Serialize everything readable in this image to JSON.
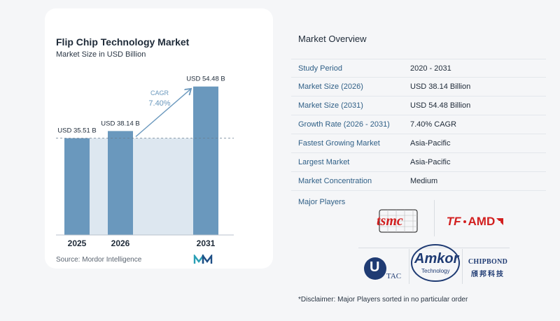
{
  "chart": {
    "title": "Flip Chip Technology Market",
    "subtitle": "Market Size in USD Billion",
    "cagr_label": "CAGR",
    "cagr_value": "7.40%",
    "source": "Source:  Mordor Intelligence"
  },
  "chart_data": {
    "type": "bar",
    "categories": [
      "2025",
      "2026",
      "2031"
    ],
    "values": [
      35.51,
      38.14,
      54.48
    ],
    "value_labels": [
      "USD 35.51 B",
      "USD 38.14 B",
      "USD 54.48 B"
    ],
    "title": "Flip Chip Technology Market",
    "subtitle": "Market Size in USD Billion",
    "ylabel": "",
    "xlabel": "",
    "ylim": [
      0,
      58
    ],
    "bar_color": "#6a98bd",
    "band_color": "#dde7f0",
    "annotation": "CAGR 7.40%"
  },
  "overview": {
    "title": "Market Overview",
    "rows": [
      {
        "label": "Study Period",
        "value": "2020 - 2031"
      },
      {
        "label": "Market Size (2026)",
        "value": "USD 38.14 Billion"
      },
      {
        "label": "Market Size (2031)",
        "value": "USD 54.48 Billion"
      },
      {
        "label": "Growth Rate (2026 - 2031)",
        "value": "7.40% CAGR"
      },
      {
        "label": "Fastest Growing Market",
        "value": "Asia-Pacific"
      },
      {
        "label": "Largest Market",
        "value": "Asia-Pacific"
      },
      {
        "label": "Market Concentration",
        "value": "Medium"
      }
    ]
  },
  "players": {
    "title": "Major Players",
    "logos": {
      "tsmc": "tsmc",
      "amd_tf": "TF",
      "amd": "AMD",
      "utac_u": "U",
      "utac_tac": "TAC",
      "amkor": "Amkor",
      "amkor_sub": "Technology",
      "chipbond": "CHIPBOND",
      "chipbond_cn": "頎邦科技"
    },
    "disclaimer": "*Disclaimer: Major Players sorted in no particular order"
  },
  "colors": {
    "accent": "#2f5f86",
    "bar": "#6a98bd",
    "amd_red": "#d21f1f",
    "navy": "#1f3b73"
  }
}
